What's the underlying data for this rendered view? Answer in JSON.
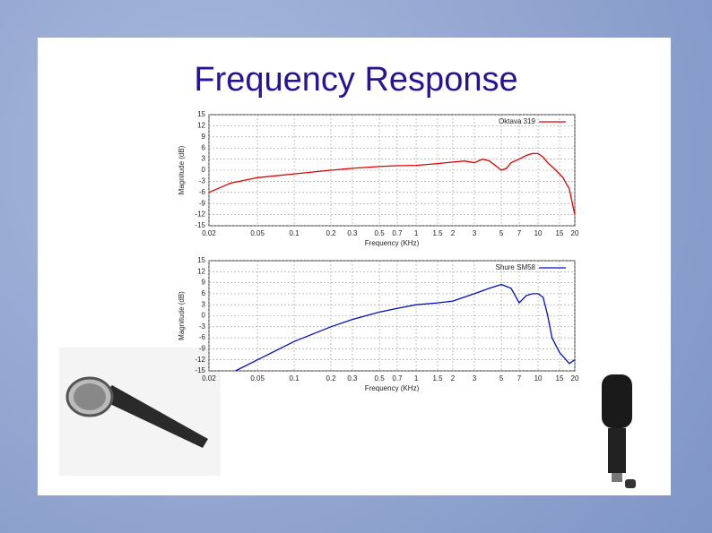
{
  "slide": {
    "title": "Frequency Response"
  },
  "chart_data": [
    {
      "type": "line",
      "xscale": "log",
      "grid": true,
      "legend": "upper right",
      "xlabel": "Frequency (KHz)",
      "ylabel": "Magnitude (dB)",
      "xlim": [
        0.02,
        20
      ],
      "ylim": [
        -15,
        15
      ],
      "xticks": [
        0.02,
        0.05,
        0.1,
        0.2,
        0.3,
        0.5,
        0.7,
        1,
        1.5,
        2,
        3,
        5,
        7,
        10,
        15,
        20
      ],
      "yticks": [
        -15,
        -12,
        -9,
        -6,
        -3,
        0,
        3,
        6,
        9,
        12,
        15
      ],
      "x": [
        0.02,
        0.03,
        0.05,
        0.1,
        0.2,
        0.3,
        0.5,
        0.7,
        1,
        1.5,
        2,
        2.5,
        3,
        3.5,
        4,
        5,
        5.5,
        6,
        7,
        8,
        9,
        10,
        11,
        12,
        14,
        16,
        18,
        20
      ],
      "series": [
        {
          "name": "Oktava 319",
          "color": "#e00000",
          "values": [
            -6,
            -3.5,
            -2,
            -1,
            0,
            0.5,
            1,
            1.2,
            1.3,
            1.8,
            2.2,
            2.5,
            2,
            3,
            2.5,
            0,
            0.5,
            2,
            3,
            4,
            4.5,
            4.5,
            3.5,
            2,
            0,
            -2,
            -5,
            -12
          ]
        }
      ]
    },
    {
      "type": "line",
      "xscale": "log",
      "grid": true,
      "legend": "upper right",
      "xlabel": "Frequency (KHz)",
      "ylabel": "Magnitude (dB)",
      "xlim": [
        0.02,
        20
      ],
      "ylim": [
        -15,
        15
      ],
      "xticks": [
        0.02,
        0.05,
        0.1,
        0.2,
        0.3,
        0.5,
        0.7,
        1,
        1.5,
        2,
        3,
        5,
        7,
        10,
        15,
        20
      ],
      "yticks": [
        -15,
        -12,
        -9,
        -6,
        -3,
        0,
        3,
        6,
        9,
        12,
        15
      ],
      "x": [
        0.033,
        0.05,
        0.1,
        0.2,
        0.3,
        0.5,
        0.7,
        1,
        1.5,
        2,
        3,
        4,
        5,
        6,
        7,
        8,
        9,
        10,
        11,
        12,
        13,
        15,
        18,
        20
      ],
      "series": [
        {
          "name": "Shure SM58",
          "color": "#0010c0",
          "values": [
            -15,
            -12,
            -7,
            -3,
            -1,
            1,
            2,
            3,
            3.5,
            4,
            6,
            7.5,
            8.5,
            7.5,
            3.5,
            5.5,
            6,
            6,
            5,
            0,
            -6,
            -10,
            -13,
            -12
          ]
        }
      ]
    }
  ]
}
